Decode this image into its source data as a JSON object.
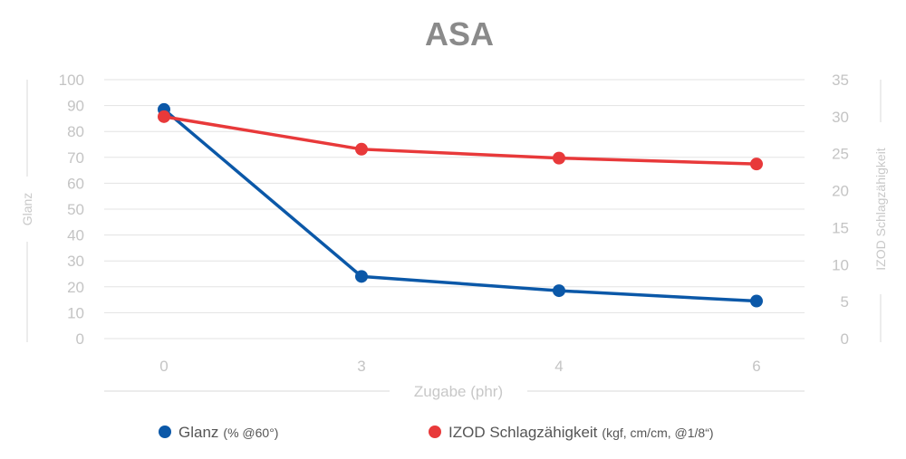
{
  "chart_data": {
    "type": "line",
    "title": "ASA",
    "xlabel": "Zugabe (phr)",
    "ylabel": "Glanz",
    "y2label": "IZOD Schlagzähigkeit",
    "categories": [
      "0",
      "3",
      "4",
      "6"
    ],
    "ylim": [
      0,
      100
    ],
    "y2lim": [
      0,
      35
    ],
    "yticks": [
      0,
      10,
      20,
      30,
      40,
      50,
      60,
      70,
      80,
      90,
      100
    ],
    "y2ticks": [
      0,
      5,
      10,
      15,
      20,
      25,
      30,
      35
    ],
    "grid": true,
    "legend_position": "bottom",
    "series": [
      {
        "name": "Glanz",
        "unit": "(% @60°)",
        "axis": "left",
        "color": "#0b58a8",
        "values": [
          88.5,
          24,
          18.5,
          14.5
        ]
      },
      {
        "name": "IZOD Schlagzähigkeit",
        "unit": "(kgf, cm/cm, @1/8“)",
        "axis": "right",
        "color": "#e8393a",
        "values": [
          30,
          25.6,
          24.4,
          23.6
        ]
      }
    ]
  }
}
